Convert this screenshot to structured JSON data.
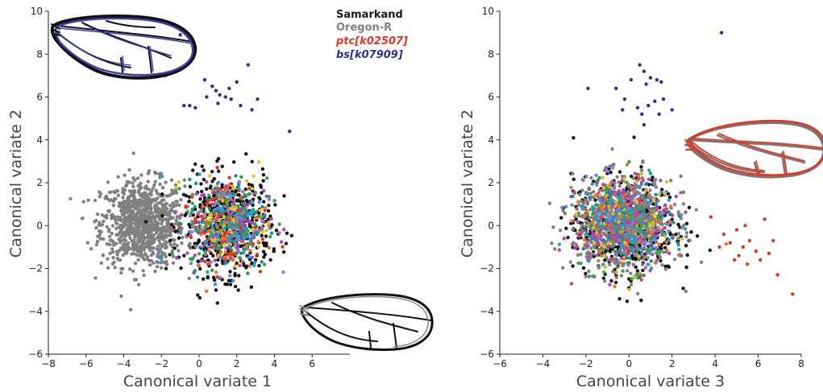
{
  "chart_data": [
    {
      "type": "scatter",
      "xlabel": "Canonical variate 1",
      "ylabel": "Canonical variate 2",
      "xlim": [
        -8,
        8
      ],
      "ylim": [
        -6,
        10
      ],
      "xticks": [
        "−8",
        "−6",
        "−4",
        "−2",
        "0",
        "2",
        "4",
        "6"
      ],
      "yticks": [
        "−6",
        "−4",
        "−2",
        "0",
        "2",
        "4",
        "6",
        "8",
        "10"
      ],
      "legend": {
        "placement": "top-center",
        "entries": [
          {
            "label": "Samarkand",
            "color": "#1a1a1a",
            "style": "normal"
          },
          {
            "label": "Oregon-R",
            "color": "#808080",
            "style": "normal"
          },
          {
            "label": "ptc[k02507]",
            "color": "#e8351e",
            "style": "italic"
          },
          {
            "label": "bs[k07909]",
            "color": "#2e2e90",
            "style": "italic"
          }
        ]
      },
      "series": [
        {
          "label_ref": "Oregon-R",
          "color": "#808080",
          "center": [
            -3.0,
            0.1
          ],
          "spread": [
            1.1,
            1.0
          ],
          "count": 900
        },
        {
          "label_ref": "Samarkand",
          "color": "#111111",
          "center": [
            1.5,
            0.0
          ],
          "spread": [
            1.15,
            1.15
          ],
          "count": 520
        },
        {
          "label_ref": "mixed lines",
          "colors": [
            "#1f9fd0",
            "#2aa845",
            "#e0c020",
            "#b040c0",
            "#e8351e",
            "#1a8f8f",
            "#7f7fdd",
            "#f07020"
          ],
          "center": [
            1.5,
            0.1
          ],
          "spread": [
            1.05,
            1.05
          ],
          "count": 620
        },
        {
          "label_ref": "bs[k07909]",
          "color": "#2e2e90",
          "points": [
            [
              -1.0,
              8.9
            ],
            [
              -1.8,
              7.0
            ],
            [
              0.3,
              6.8
            ],
            [
              0.7,
              6.5
            ],
            [
              1.1,
              6.1
            ],
            [
              0.9,
              6.3
            ],
            [
              1.6,
              6.4
            ],
            [
              2.0,
              6.7
            ],
            [
              2.6,
              7.5
            ],
            [
              -0.5,
              5.6
            ],
            [
              -0.2,
              5.5
            ],
            [
              0.4,
              6.0
            ],
            [
              1.4,
              6.0
            ],
            [
              1.7,
              5.9
            ],
            [
              2.2,
              5.6
            ],
            [
              2.8,
              5.4
            ],
            [
              3.1,
              5.9
            ],
            [
              4.8,
              4.4
            ],
            [
              1.0,
              5.7
            ],
            [
              -0.8,
              5.6
            ]
          ]
        }
      ],
      "wing_insets": [
        "wing outline (black, blue)",
        "wing outline (black, grey)"
      ]
    },
    {
      "type": "scatter",
      "xlabel": "Canonical variate 3",
      "ylabel": "Canonical variate 2",
      "xlim": [
        -6,
        8
      ],
      "ylim": [
        -6,
        10
      ],
      "xticks": [
        "−6",
        "−4",
        "−2",
        "0",
        "2",
        "4",
        "6",
        "8"
      ],
      "yticks": [
        "−6",
        "−4",
        "−2",
        "0",
        "2",
        "4",
        "6",
        "8",
        "10"
      ],
      "series": [
        {
          "label_ref": "Samarkand",
          "color": "#111111",
          "center": [
            -0.2,
            0.0
          ],
          "spread": [
            1.2,
            1.15
          ],
          "count": 520
        },
        {
          "label_ref": "Oregon-R",
          "color": "#808080",
          "center": [
            -0.3,
            0.1
          ],
          "spread": [
            1.15,
            1.05
          ],
          "count": 700
        },
        {
          "label_ref": "mixed lines",
          "colors": [
            "#1f9fd0",
            "#2aa845",
            "#e0c020",
            "#b040c0",
            "#1a8f8f",
            "#7f7fdd",
            "#f07020",
            "#d04090"
          ],
          "center": [
            -0.2,
            0.1
          ],
          "spread": [
            1.1,
            1.05
          ],
          "count": 620
        },
        {
          "label_ref": "bs[k07909]",
          "color": "#2e2e90",
          "points": [
            [
              4.3,
              9.0
            ],
            [
              0.5,
              7.5
            ],
            [
              0.7,
              7.2
            ],
            [
              1.0,
              6.9
            ],
            [
              1.3,
              6.8
            ],
            [
              -0.6,
              6.4
            ],
            [
              0.1,
              6.8
            ],
            [
              0.8,
              6.6
            ],
            [
              1.5,
              6.7
            ],
            [
              -1.9,
              6.4
            ],
            [
              -0.2,
              5.9
            ],
            [
              0.4,
              5.5
            ],
            [
              0.9,
              5.6
            ],
            [
              1.6,
              5.9
            ],
            [
              2.0,
              5.4
            ],
            [
              0.6,
              5.2
            ],
            [
              1.2,
              5.8
            ],
            [
              -0.3,
              5.4
            ],
            [
              0.7,
              4.7
            ],
            [
              1.4,
              5.2
            ]
          ]
        },
        {
          "label_ref": "ptc[k02507]",
          "color": "#e8351e",
          "points": [
            [
              3.8,
              0.4
            ],
            [
              4.4,
              -0.4
            ],
            [
              4.7,
              -0.8
            ],
            [
              5.1,
              -1.4
            ],
            [
              5.3,
              -1.0
            ],
            [
              5.6,
              -0.7
            ],
            [
              5.9,
              -1.2
            ],
            [
              6.1,
              -1.6
            ],
            [
              5.5,
              -1.8
            ],
            [
              6.3,
              0.3
            ],
            [
              6.7,
              -0.7
            ],
            [
              6.9,
              -2.3
            ],
            [
              7.6,
              -3.2
            ],
            [
              5.4,
              0.0
            ],
            [
              5.0,
              -0.2
            ],
            [
              4.9,
              -1.6
            ],
            [
              6.5,
              -1.3
            ],
            [
              4.2,
              -1.0
            ]
          ]
        }
      ],
      "wing_insets": [
        "wing outline (orange-red, grey)"
      ]
    }
  ]
}
